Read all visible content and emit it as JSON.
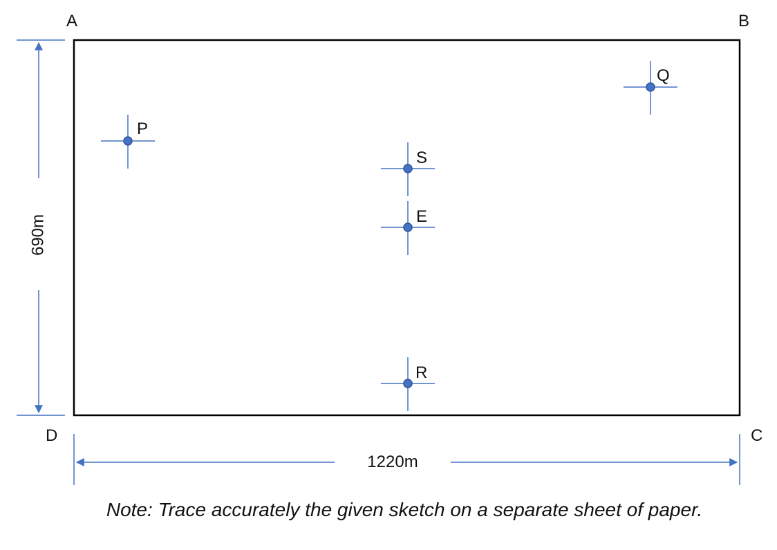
{
  "corners": {
    "a": "A",
    "b": "B",
    "c": "C",
    "d": "D"
  },
  "dimensions": {
    "height_label": "690m",
    "width_label": "1220m"
  },
  "points": {
    "p": "P",
    "q": "Q",
    "s": "S",
    "e": "E",
    "r": "R"
  },
  "note": "Note: Trace accurately the given sketch on a separate sheet of paper.",
  "colors": {
    "accent": "#4472C4",
    "marker_fill": "#4472C4",
    "marker_stroke": "#2F5597",
    "outline": "#000000"
  }
}
